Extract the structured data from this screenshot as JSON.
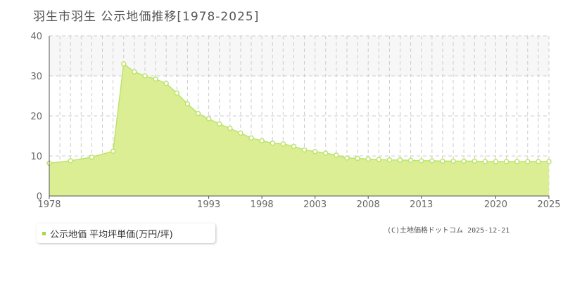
{
  "title": "羽生市羽生 公示地価推移[1978-2025]",
  "legend": {
    "label": "公示地価 平均坪単価(万円/坪)"
  },
  "credit": "(C)土地価格ドットコム 2025-12-21",
  "colors": {
    "fill": "#dcee94",
    "line": "#bde36b",
    "marker_stroke": "#bde36b",
    "marker_fill": "#ffffff",
    "band": "#f8f7f8",
    "grid": "#cccccc",
    "legend_swatch": "#a8d64b"
  },
  "chart_data": {
    "type": "area",
    "title": "羽生市羽生 公示地価推移[1978-2025]",
    "xlabel": "",
    "ylabel": "",
    "xlim": [
      1978,
      2025
    ],
    "ylim": [
      0,
      40
    ],
    "x_ticks": [
      "1978",
      "1993",
      "1998",
      "2003",
      "2008",
      "2013",
      "2020",
      "2025"
    ],
    "y_ticks": [
      "0",
      "10",
      "20",
      "30",
      "40"
    ],
    "grid": true,
    "legend_position": "bottom-left",
    "series": [
      {
        "name": "公示地価 平均坪単価(万円/坪)",
        "x": [
          1978,
          1979,
          1980,
          1981,
          1982,
          1983,
          1984,
          1985,
          1986,
          1987,
          1988,
          1989,
          1990,
          1991,
          1992,
          1993,
          1994,
          1995,
          1996,
          1997,
          1998,
          1999,
          2000,
          2001,
          2002,
          2003,
          2004,
          2005,
          2006,
          2007,
          2008,
          2009,
          2010,
          2011,
          2012,
          2013,
          2014,
          2015,
          2016,
          2017,
          2018,
          2019,
          2020,
          2021,
          2022,
          2023,
          2024,
          2025
        ],
        "values": [
          8.2,
          null,
          8.8,
          null,
          9.7,
          null,
          11.2,
          33.0,
          31.0,
          30.0,
          29.2,
          28.1,
          25.7,
          23.0,
          20.6,
          19.3,
          18.0,
          16.9,
          15.7,
          14.5,
          13.8,
          13.2,
          13.0,
          12.4,
          11.5,
          11.1,
          10.7,
          10.2,
          9.5,
          9.4,
          9.2,
          9.1,
          9.0,
          9.0,
          8.9,
          8.8,
          8.8,
          8.7,
          8.7,
          8.7,
          8.7,
          8.6,
          8.6,
          8.6,
          8.6,
          8.6,
          8.6,
          8.6
        ]
      }
    ]
  }
}
